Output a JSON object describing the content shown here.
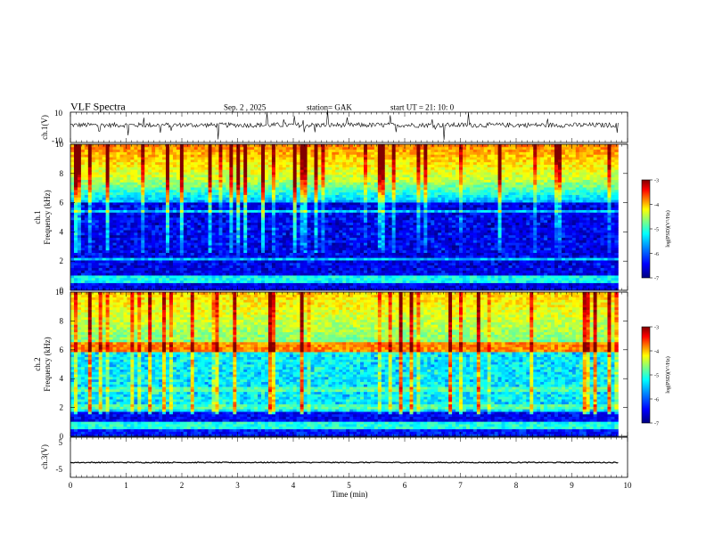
{
  "header": {
    "title": "VLF  Spectra",
    "date": "Sep. 2  , 2025",
    "station": "station= GAK",
    "start": "start  UT  =    21: 10: 0"
  },
  "chart_data": [
    {
      "id": "ch1-waveform",
      "type": "line",
      "ylabel": "ch.1(V)",
      "ylim": [
        -10,
        10
      ],
      "yticks": [
        "10",
        "-10"
      ],
      "xlim": [
        0,
        10
      ],
      "data_end_min": 9.83,
      "baseline": 1.5,
      "noise_amplitude": 2
    },
    {
      "id": "ch1-spectrogram",
      "type": "heatmap",
      "ylabel": "ch.1\nFrequency  (kHz)",
      "ylabel_lines": [
        "ch.1",
        "Frequency  (kHz)"
      ],
      "ylim": [
        0,
        10
      ],
      "yticks": [
        "0",
        "2",
        "4",
        "6",
        "8",
        "10"
      ],
      "xlim": [
        0,
        10
      ],
      "data_end_min": 9.83,
      "colorbar": {
        "label": "log(PSD)(V²/Hz)",
        "range": [
          -7,
          -3
        ],
        "ticks": [
          "-3",
          "-4",
          "-5",
          "-6",
          "-7"
        ]
      }
    },
    {
      "id": "ch2-spectrogram",
      "type": "heatmap",
      "ylabel": "ch.2\nFrequency  (kHz)",
      "ylabel_lines": [
        "ch.2",
        "Frequency  (kHz)"
      ],
      "ylim": [
        0,
        10
      ],
      "yticks": [
        "0",
        "2",
        "4",
        "6",
        "8",
        "10"
      ],
      "xlim": [
        0,
        10
      ],
      "data_end_min": 9.83,
      "colorbar": {
        "label": "log(PSD)(V²/Hz)",
        "range": [
          -7,
          -3
        ],
        "ticks": [
          "-3",
          "-4",
          "-5",
          "-6",
          "-7"
        ]
      }
    },
    {
      "id": "ch3-waveform",
      "type": "line",
      "ylabel": "ch.3(V)",
      "ylim": [
        -5,
        5
      ],
      "yticks": [
        "5",
        "-5"
      ],
      "xlim": [
        0,
        10
      ],
      "data_end_min": 9.83,
      "baseline": -1.3,
      "noise_amplitude": 0.25
    }
  ],
  "xaxis": {
    "label": "Time  (min)",
    "ticks": [
      "0",
      "1",
      "2",
      "3",
      "4",
      "5",
      "6",
      "7",
      "8",
      "9",
      "10"
    ]
  },
  "colors": {
    "colormap": [
      "#00007f",
      "#0000ff",
      "#0080ff",
      "#00ffff",
      "#80ff80",
      "#ffff00",
      "#ff8000",
      "#ff0000",
      "#800000"
    ]
  }
}
